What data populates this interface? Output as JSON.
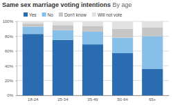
{
  "chart_data": {
    "type": "bar",
    "title": "Same sex marriage voting intentions",
    "subtitle": "By age",
    "categories": [
      "18-24",
      "25-34",
      "35-49",
      "50-64",
      "65+"
    ],
    "series": [
      {
        "name": "Yes",
        "color": "#2b6cb0",
        "values": [
          83,
          75,
          69,
          57,
          36
        ]
      },
      {
        "name": "No",
        "color": "#88bfe9",
        "values": [
          10,
          13,
          17,
          21,
          44
        ]
      },
      {
        "name": "Don't know",
        "color": "#c6c6c6",
        "values": [
          4,
          7,
          8,
          12,
          12
        ]
      },
      {
        "name": "Will not vote",
        "color": "#e2e2e2",
        "values": [
          3,
          5,
          6,
          10,
          8
        ]
      }
    ],
    "ylim": [
      0,
      100
    ],
    "yticks": [
      {
        "value": 0,
        "label": "0%"
      },
      {
        "value": 20,
        "label": "20%"
      },
      {
        "value": 40,
        "label": "40%"
      },
      {
        "value": 60,
        "label": "60%"
      },
      {
        "value": 80,
        "label": "80%"
      },
      {
        "value": 100,
        "label": "100%"
      }
    ],
    "stacked": true,
    "grid": true,
    "legend": "top"
  }
}
